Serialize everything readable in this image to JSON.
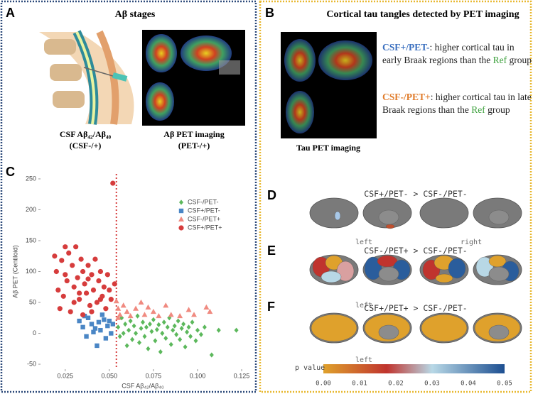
{
  "panel_a": {
    "letter": "A",
    "title": "Aβ stages",
    "csf_label": "CSF Aβ₄₂/Aβ₄₀",
    "csf_sub": "(CSF-/+)",
    "pet_label": "Aβ PET imaging",
    "pet_sub": "(PET-/+)"
  },
  "panel_b": {
    "letter": "B",
    "title": "Cortical tau tangles detected by PET imaging",
    "image_label": "Tau PET imaging",
    "notes": [
      {
        "group": "CSF+/PET-",
        "text": ": higher cortical tau in early Braak regions than the ",
        "ref": "Ref",
        "end": " group"
      },
      {
        "group": "CSF-/PET+",
        "text": ": higher cortical tau in late Braak regions than the ",
        "ref": "Ref",
        "end": " group"
      }
    ]
  },
  "panel_c": {
    "letter": "C"
  },
  "chart_data": {
    "type": "scatter",
    "xlabel": "CSF Aβ₄₂/Aβ₄₀",
    "ylabel": "Aβ PET (Centiloid)",
    "xlim": [
      0.011,
      0.127
    ],
    "ylim": [
      -58,
      258
    ],
    "xticks": [
      0.025,
      {
        "value": 0.05,
        "label": "0.050"
      },
      0.075,
      {
        "value": 0.1,
        "label": "0.100"
      },
      0.125
    ],
    "yticks": [
      -50,
      0,
      50,
      100,
      150,
      200,
      250
    ],
    "threshold": 0.054,
    "legend": "top-right",
    "series": [
      {
        "name": "CSF-/PET-",
        "color": "#5cb85c",
        "marker": "diamond",
        "x": [
          0.055,
          0.056,
          0.057,
          0.058,
          0.059,
          0.06,
          0.061,
          0.062,
          0.063,
          0.064,
          0.065,
          0.066,
          0.067,
          0.068,
          0.069,
          0.07,
          0.071,
          0.072,
          0.073,
          0.074,
          0.075,
          0.076,
          0.077,
          0.078,
          0.079,
          0.08,
          0.081,
          0.082,
          0.083,
          0.084,
          0.085,
          0.086,
          0.087,
          0.088,
          0.089,
          0.09,
          0.091,
          0.092,
          0.093,
          0.094,
          0.095,
          0.096,
          0.097,
          0.099,
          0.1,
          0.102,
          0.104,
          0.108,
          0.112,
          0.122
        ],
        "values": [
          10,
          -5,
          25,
          0,
          15,
          -20,
          5,
          20,
          -10,
          12,
          0,
          28,
          -15,
          8,
          18,
          -5,
          10,
          -25,
          15,
          3,
          22,
          -12,
          6,
          14,
          -30,
          0,
          18,
          -8,
          10,
          25,
          -18,
          5,
          12,
          -2,
          20,
          -10,
          8,
          15,
          -22,
          2,
          10,
          -5,
          18,
          -12,
          5,
          -2,
          10,
          -35,
          5,
          5
        ]
      },
      {
        "name": "CSF+/PET-",
        "color": "#4a86c5",
        "marker": "square",
        "x": [
          0.033,
          0.035,
          0.037,
          0.038,
          0.04,
          0.041,
          0.043,
          0.044,
          0.045,
          0.046,
          0.047,
          0.048,
          0.049,
          0.05,
          0.051,
          0.052,
          0.036,
          0.042
        ],
        "values": [
          20,
          10,
          -5,
          25,
          15,
          2,
          -20,
          18,
          5,
          30,
          22,
          -8,
          12,
          20,
          0,
          15,
          28,
          8
        ]
      },
      {
        "name": "CSF-/PET+",
        "color": "#f08a80",
        "marker": "triangle",
        "x": [
          0.054,
          0.055,
          0.056,
          0.058,
          0.06,
          0.062,
          0.065,
          0.068,
          0.07,
          0.072,
          0.075,
          0.078,
          0.082,
          0.085,
          0.09,
          0.095,
          0.098,
          0.105,
          0.107,
          0.055
        ],
        "values": [
          52,
          40,
          30,
          45,
          35,
          28,
          40,
          50,
          30,
          42,
          35,
          28,
          45,
          30,
          28,
          38,
          30,
          42,
          35,
          25
        ]
      },
      {
        "name": "CSF+/PET+",
        "color": "#d63c3c",
        "marker": "circle",
        "x": [
          0.019,
          0.02,
          0.021,
          0.022,
          0.023,
          0.024,
          0.025,
          0.026,
          0.027,
          0.028,
          0.029,
          0.03,
          0.031,
          0.032,
          0.033,
          0.034,
          0.035,
          0.036,
          0.037,
          0.038,
          0.039,
          0.04,
          0.041,
          0.042,
          0.043,
          0.044,
          0.045,
          0.046,
          0.047,
          0.048,
          0.049,
          0.05,
          0.051,
          0.052,
          0.053,
          0.03,
          0.035,
          0.04,
          0.045,
          0.025,
          0.033,
          0.038
        ],
        "values": [
          125,
          100,
          70,
          40,
          118,
          60,
          140,
          85,
          130,
          35,
          110,
          75,
          140,
          90,
          55,
          120,
          100,
          80,
          65,
          110,
          45,
          95,
          70,
          120,
          50,
          85,
          100,
          60,
          75,
          40,
          95,
          70,
          55,
          243,
          80,
          50,
          30,
          35,
          55,
          95,
          65,
          88
        ]
      }
    ]
  },
  "brain_panels": [
    {
      "letter": "D",
      "comparison": "CSF+/PET- > CSF-/PET-",
      "left": "left",
      "right": "right"
    },
    {
      "letter": "E",
      "comparison": "CSF-/PET+ > CSF-/PET-",
      "left": "left"
    },
    {
      "letter": "F",
      "comparison": "CSF+/PET+ > CSF-/PET-",
      "left": "left"
    }
  ],
  "colorbar": {
    "label": "p value",
    "ticks": [
      "0.00",
      "0.01",
      "0.02",
      "0.03",
      "0.04",
      "0.05"
    ]
  }
}
